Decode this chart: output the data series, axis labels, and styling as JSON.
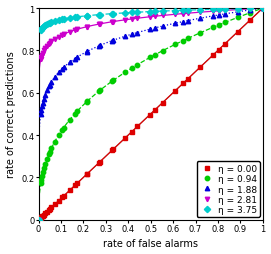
{
  "title": "",
  "xlabel": "rate of false alarms",
  "ylabel": "rate of correct predictions",
  "xlim": [
    0,
    1
  ],
  "ylim": [
    0,
    1
  ],
  "xticks": [
    0,
    0.1,
    0.2,
    0.3,
    0.4,
    0.5,
    0.6,
    0.7,
    0.8,
    0.9,
    1
  ],
  "yticks": [
    0,
    0.2,
    0.4,
    0.6,
    0.8,
    1
  ],
  "series": [
    {
      "label": "η = 0.00",
      "eta": 0.0,
      "exponent": 1.0,
      "color": "#dd0000",
      "marker": "s",
      "linestyle": "-",
      "linewidth": 0.9
    },
    {
      "label": "η = 0.94",
      "eta": 0.94,
      "exponent": 0.38,
      "color": "#00cc00",
      "marker": "o",
      "linestyle": "--",
      "linewidth": 0.9
    },
    {
      "label": "η = 1.88",
      "eta": 1.88,
      "exponent": 0.15,
      "color": "#0000dd",
      "marker": "^",
      "linestyle": ":",
      "linewidth": 0.9
    },
    {
      "label": "η = 2.81",
      "eta": 2.81,
      "exponent": 0.06,
      "color": "#cc00cc",
      "marker": "v",
      "linestyle": "-",
      "linewidth": 0.9
    },
    {
      "label": "η = 3.75",
      "eta": 3.75,
      "exponent": 0.024,
      "color": "#00cccc",
      "marker": "D",
      "linestyle": "--",
      "linewidth": 0.9
    }
  ],
  "diagonal_color": "#888888",
  "background_color": "#ffffff",
  "legend_fontsize": 6.5,
  "axis_fontsize": 7,
  "tick_fontsize": 6,
  "figsize": [
    2.71,
    2.55
  ],
  "dpi": 100
}
